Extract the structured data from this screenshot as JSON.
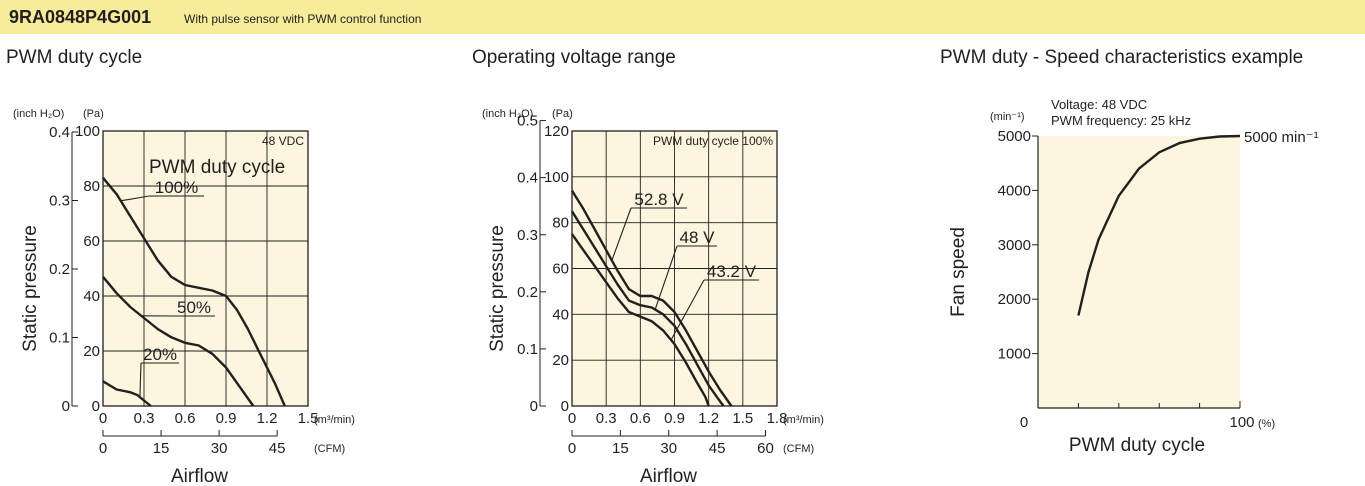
{
  "header": {
    "model": "9RA0848P4G001",
    "description": "With pulse sensor with PWM control function"
  },
  "chart_data": [
    {
      "type": "line",
      "title": "PWM duty cycle",
      "annotation": "48 VDC",
      "legend_title": "PWM duty cycle",
      "xlabel": "Airflow",
      "ylabel": "Static pressure",
      "x_primary": {
        "unit": "(m³/min)",
        "ticks": [
          0,
          0.3,
          0.6,
          0.9,
          1.2,
          1.5
        ],
        "tick_labels": [
          "0",
          "0.3",
          "0.6",
          "0.9",
          "1.2",
          "1.5"
        ],
        "range": [
          0,
          1.5
        ]
      },
      "x_secondary": {
        "unit": "(CFM)",
        "ticks": [
          0,
          15,
          30,
          45
        ],
        "tick_labels": [
          "0",
          "15",
          "30",
          "45"
        ]
      },
      "y_primary": {
        "unit": "(Pa)",
        "ticks": [
          0,
          20,
          40,
          60,
          80,
          100
        ],
        "tick_labels": [
          "0",
          "20",
          "40",
          "60",
          "80",
          "100"
        ],
        "range": [
          0,
          100
        ]
      },
      "y_secondary": {
        "unit": "(inch H₂O)",
        "ticks": [
          0,
          0.1,
          0.2,
          0.3,
          0.4
        ],
        "tick_labels": [
          "0",
          "0.1",
          "0.2",
          "0.3",
          "0.4"
        ]
      },
      "grid": true,
      "series": [
        {
          "name": "100%",
          "points": [
            [
              0,
              83
            ],
            [
              0.1,
              77
            ],
            [
              0.2,
              69
            ],
            [
              0.3,
              61
            ],
            [
              0.4,
              53
            ],
            [
              0.5,
              47
            ],
            [
              0.6,
              44
            ],
            [
              0.7,
              43
            ],
            [
              0.8,
              42
            ],
            [
              0.9,
              40
            ],
            [
              0.98,
              35
            ],
            [
              1.06,
              28
            ],
            [
              1.13,
              21
            ],
            [
              1.2,
              14
            ],
            [
              1.26,
              8
            ],
            [
              1.33,
              0
            ]
          ]
        },
        {
          "name": "50%",
          "points": [
            [
              0,
              47
            ],
            [
              0.1,
              41
            ],
            [
              0.2,
              36
            ],
            [
              0.3,
              32
            ],
            [
              0.4,
              28
            ],
            [
              0.5,
              25
            ],
            [
              0.6,
              23
            ],
            [
              0.7,
              22
            ],
            [
              0.8,
              19
            ],
            [
              0.9,
              14
            ],
            [
              1.0,
              7
            ],
            [
              1.1,
              0
            ]
          ]
        },
        {
          "name": "20%",
          "points": [
            [
              0,
              9
            ],
            [
              0.1,
              6
            ],
            [
              0.2,
              5
            ],
            [
              0.25,
              4
            ],
            [
              0.3,
              2
            ],
            [
              0.35,
              0
            ]
          ]
        }
      ],
      "labels": [
        {
          "text": "100%",
          "series": "100%"
        },
        {
          "text": "50%",
          "series": "50%"
        },
        {
          "text": "20%",
          "series": "20%"
        }
      ]
    },
    {
      "type": "line",
      "title": "Operating voltage range",
      "annotation": "PWM duty cycle 100%",
      "xlabel": "Airflow",
      "ylabel": "Static pressure",
      "x_primary": {
        "unit": "(m³/min)",
        "ticks": [
          0,
          0.3,
          0.6,
          0.9,
          1.2,
          1.5,
          1.8
        ],
        "tick_labels": [
          "0",
          "0.3",
          "0.6",
          "0.9",
          "1.2",
          "1.5",
          "1.8"
        ],
        "range": [
          0,
          1.8
        ]
      },
      "x_secondary": {
        "unit": "(CFM)",
        "ticks": [
          0,
          15,
          30,
          45,
          60
        ],
        "tick_labels": [
          "0",
          "15",
          "30",
          "45",
          "60"
        ]
      },
      "y_primary": {
        "unit": "(Pa)",
        "ticks": [
          0,
          20,
          40,
          60,
          80,
          100,
          120
        ],
        "tick_labels": [
          "0",
          "20",
          "40",
          "60",
          "80",
          "100",
          "120"
        ],
        "range": [
          0,
          120
        ]
      },
      "y_secondary": {
        "unit": "(inch H₂O)",
        "ticks": [
          0,
          0.1,
          0.2,
          0.3,
          0.4,
          0.5
        ],
        "tick_labels": [
          "0",
          "0.1",
          "0.2",
          "0.3",
          "0.4",
          "0.5"
        ]
      },
      "grid": true,
      "series": [
        {
          "name": "52.8 V",
          "points": [
            [
              0,
              94
            ],
            [
              0.1,
              86
            ],
            [
              0.2,
              77
            ],
            [
              0.3,
              68
            ],
            [
              0.4,
              59
            ],
            [
              0.5,
              51
            ],
            [
              0.6,
              48
            ],
            [
              0.7,
              48
            ],
            [
              0.8,
              46
            ],
            [
              0.9,
              41
            ],
            [
              1.0,
              33
            ],
            [
              1.1,
              24
            ],
            [
              1.2,
              15
            ],
            [
              1.3,
              7
            ],
            [
              1.4,
              0
            ]
          ]
        },
        {
          "name": "48 V",
          "points": [
            [
              0,
              85
            ],
            [
              0.1,
              77
            ],
            [
              0.2,
              69
            ],
            [
              0.3,
              61
            ],
            [
              0.4,
              53
            ],
            [
              0.5,
              46
            ],
            [
              0.6,
              44
            ],
            [
              0.7,
              43
            ],
            [
              0.8,
              40
            ],
            [
              0.9,
              35
            ],
            [
              1.0,
              27
            ],
            [
              1.1,
              18
            ],
            [
              1.2,
              9
            ],
            [
              1.3,
              2
            ],
            [
              1.33,
              0
            ]
          ]
        },
        {
          "name": "43.2 V",
          "points": [
            [
              0,
              75
            ],
            [
              0.1,
              68
            ],
            [
              0.2,
              61
            ],
            [
              0.3,
              54
            ],
            [
              0.4,
              47
            ],
            [
              0.5,
              41
            ],
            [
              0.6,
              39
            ],
            [
              0.7,
              37
            ],
            [
              0.8,
              33
            ],
            [
              0.9,
              27
            ],
            [
              1.0,
              19
            ],
            [
              1.1,
              10
            ],
            [
              1.17,
              4
            ],
            [
              1.2,
              0
            ]
          ]
        }
      ],
      "labels": [
        {
          "text": "52.8 V",
          "series": "52.8 V"
        },
        {
          "text": "48 V",
          "series": "48 V"
        },
        {
          "text": "43.2 V",
          "series": "43.2 V"
        }
      ]
    },
    {
      "type": "line",
      "title": "PWM duty - Speed characteristics example",
      "annotations": [
        "Voltage: 48 VDC",
        "PWM frequency: 25 kHz"
      ],
      "xlabel": "PWM duty cycle",
      "ylabel": "Fan speed",
      "x_unit": "(%)",
      "y_unit": "(min⁻¹)",
      "x_ticks": [
        0,
        100
      ],
      "x_tick_labels": [
        "0",
        "100"
      ],
      "x_range": [
        0,
        100
      ],
      "y_ticks": [
        1000,
        2000,
        3000,
        4000,
        5000
      ],
      "y_tick_labels": [
        "1000",
        "2000",
        "3000",
        "4000",
        "5000"
      ],
      "y_range": [
        0,
        5000
      ],
      "grid": false,
      "end_label": "5000 min⁻¹",
      "series": [
        {
          "points": [
            [
              20,
              1700
            ],
            [
              25,
              2500
            ],
            [
              30,
              3100
            ],
            [
              40,
              3900
            ],
            [
              50,
              4400
            ],
            [
              60,
              4700
            ],
            [
              70,
              4870
            ],
            [
              80,
              4950
            ],
            [
              90,
              4990
            ],
            [
              100,
              5000
            ]
          ]
        }
      ]
    }
  ]
}
